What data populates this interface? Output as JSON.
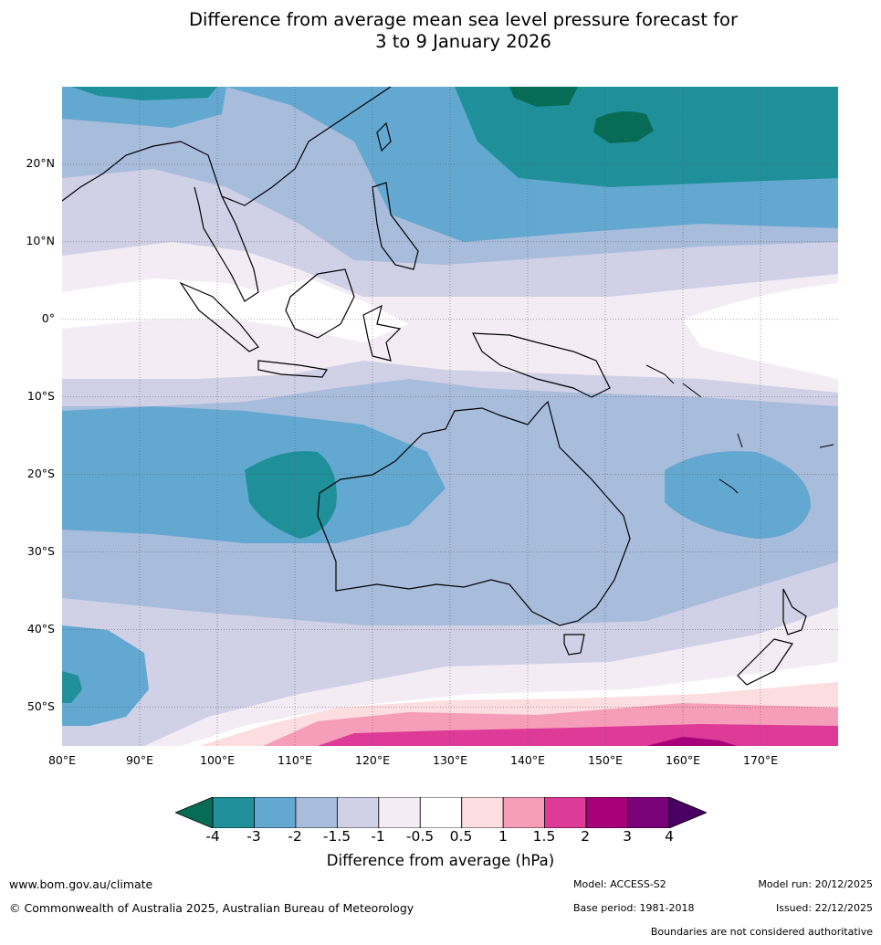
{
  "title": {
    "line1": "Difference from average mean sea level pressure forecast for",
    "line2": "3 to 9 January 2026"
  },
  "map": {
    "latitude_labels": [
      "20°N",
      "10°N",
      "0°",
      "10°S",
      "20°S",
      "30°S",
      "40°S",
      "50°S"
    ],
    "longitude_labels": [
      "80°E",
      "90°E",
      "100°E",
      "110°E",
      "120°E",
      "130°E",
      "140°E",
      "150°E",
      "160°E",
      "170°E"
    ],
    "extent": {
      "lon_min": 80,
      "lon_max": 180,
      "lat_min": -55,
      "lat_max": 30
    }
  },
  "legend": {
    "title": "Difference from average (hPa)",
    "ticks": [
      "-4",
      "-3",
      "-2",
      "-1.5",
      "-1",
      "-0.5",
      "0.5",
      "1",
      "1.5",
      "2",
      "3",
      "4"
    ],
    "colors": [
      "#086b56",
      "#1f9099",
      "#63a8d0",
      "#a8bcdc",
      "#d0d0e6",
      "#f3ecf5",
      "#ffffff",
      "#fcdde0",
      "#f69db9",
      "#de3a98",
      "#a8007b",
      "#7a0177",
      "#4a0063"
    ]
  },
  "footer": {
    "url": "www.bom.gov.au/climate",
    "copyright": "© Commonwealth of Australia 2025, Australian Bureau of Meteorology",
    "model": "Model: ACCESS-S2",
    "model_run": "Model run: 20/12/2025",
    "base_period": "Base period: 1981-2018",
    "issued": "Issued: 22/12/2025",
    "boundaries": "Boundaries are not considered authoritative"
  }
}
